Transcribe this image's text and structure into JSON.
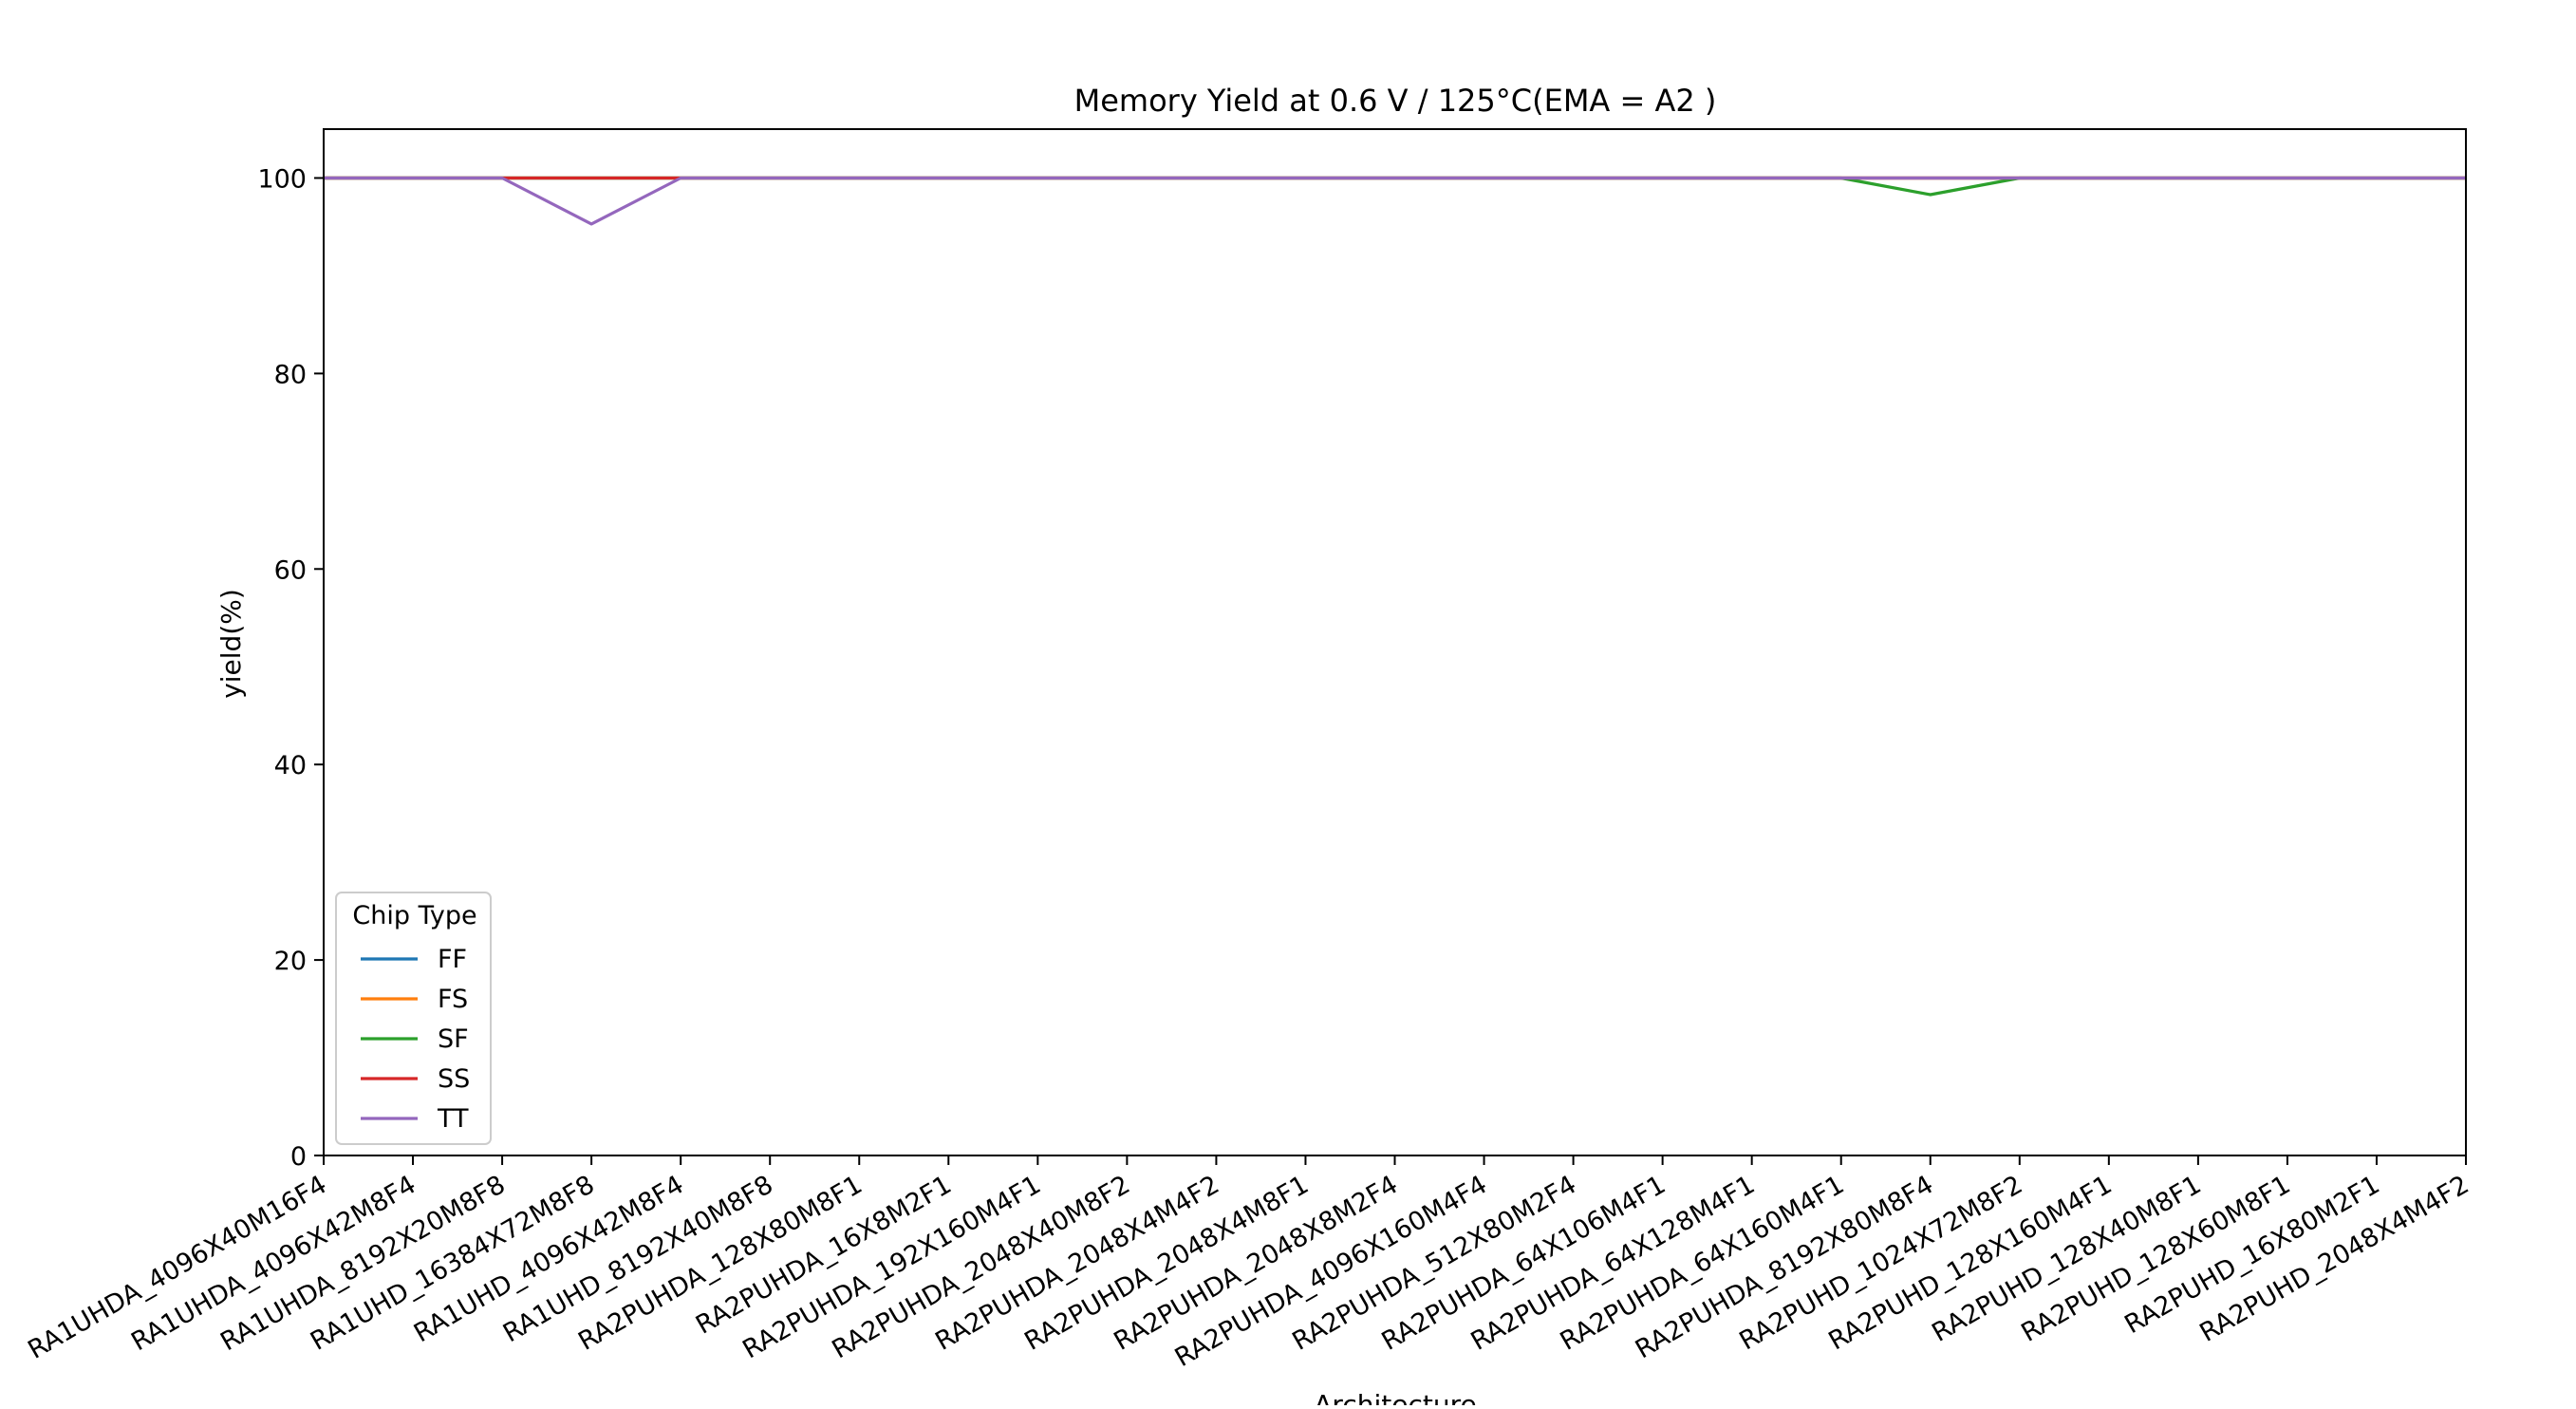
{
  "chart_data": {
    "type": "line",
    "title": "Memory Yield at 0.6 V / 125°C(EMA = A2 )",
    "xlabel": "Architecture",
    "ylabel": "yield(%)",
    "ylim": [
      0,
      105
    ],
    "yticks": [
      0,
      20,
      40,
      60,
      80,
      100
    ],
    "grid": false,
    "legend": {
      "title": "Chip Type",
      "placement": "lower-left"
    },
    "categories": [
      "RA1UHDA_4096X40M16F4",
      "RA1UHDA_4096X42M8F4",
      "RA1UHDA_8192X20M8F8",
      "RA1UHD_16384X72M8F8",
      "RA1UHD_4096X42M8F4",
      "RA1UHD_8192X40M8F8",
      "RA2PUHDA_128X80M8F1",
      "RA2PUHDA_16X8M2F1",
      "RA2PUHDA_192X160M4F1",
      "RA2PUHDA_2048X40M8F2",
      "RA2PUHDA_2048X4M4F2",
      "RA2PUHDA_2048X4M8F1",
      "RA2PUHDA_2048X8M2F4",
      "RA2PUHDA_4096X160M4F4",
      "RA2PUHDA_512X80M2F4",
      "RA2PUHDA_64X106M4F1",
      "RA2PUHDA_64X128M4F1",
      "RA2PUHDA_64X160M4F1",
      "RA2PUHDA_8192X80M8F4",
      "RA2PUHD_1024X72M8F2",
      "RA2PUHD_128X160M4F1",
      "RA2PUHD_128X40M8F1",
      "RA2PUHD_128X60M8F1",
      "RA2PUHD_16X80M2F1",
      "RA2PUHD_2048X4M4F2"
    ],
    "series": [
      {
        "name": "FF",
        "color": "#1f77b4",
        "values": [
          100,
          100,
          100,
          100,
          100,
          100,
          100,
          100,
          100,
          100,
          100,
          100,
          100,
          100,
          100,
          100,
          100,
          100,
          100,
          100,
          100,
          100,
          100,
          100,
          100
        ]
      },
      {
        "name": "FS",
        "color": "#ff7f0e",
        "values": [
          100,
          100,
          100,
          100,
          100,
          100,
          100,
          100,
          100,
          100,
          100,
          100,
          100,
          100,
          100,
          100,
          100,
          100,
          100,
          100,
          100,
          100,
          100,
          100,
          100
        ]
      },
      {
        "name": "SF",
        "color": "#2ca02c",
        "values": [
          100,
          100,
          100,
          100,
          100,
          100,
          100,
          100,
          100,
          100,
          100,
          100,
          100,
          100,
          100,
          100,
          100,
          100,
          98.3,
          100,
          100,
          100,
          100,
          100,
          100
        ]
      },
      {
        "name": "SS",
        "color": "#d62728",
        "values": [
          100,
          100,
          100,
          100,
          100,
          100,
          100,
          100,
          100,
          100,
          100,
          100,
          100,
          100,
          100,
          100,
          100,
          100,
          100,
          100,
          100,
          100,
          100,
          100,
          100
        ]
      },
      {
        "name": "TT",
        "color": "#9467bd",
        "values": [
          100,
          100,
          100,
          95.3,
          100,
          100,
          100,
          100,
          100,
          100,
          100,
          100,
          100,
          100,
          100,
          100,
          100,
          100,
          100,
          100,
          100,
          100,
          100,
          100,
          100
        ]
      }
    ]
  }
}
